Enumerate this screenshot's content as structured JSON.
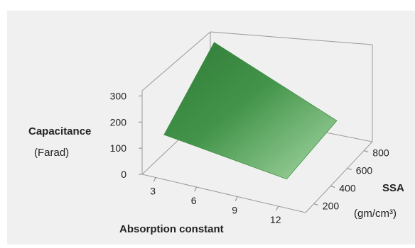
{
  "chart_data": {
    "type": "surface",
    "title": "",
    "xlabel": "Absorption constant",
    "ylabel": "SSA",
    "ylabel_unit": "(gm/cm³)",
    "zlabel": "Capacitance",
    "zlabel_unit": "(Farad)",
    "xticks": [
      "3",
      "6",
      "9",
      "12"
    ],
    "yticks": [
      "200",
      "400",
      "600",
      "800"
    ],
    "zticks": [
      "0",
      "100",
      "200",
      "300"
    ],
    "xlim": [
      2,
      14
    ],
    "ylim": [
      100,
      900
    ],
    "zlim": [
      0,
      320
    ],
    "grid": false,
    "surface_color": "#3f8f45",
    "surface_points": [
      {
        "x": 3,
        "y": 200,
        "z": 130
      },
      {
        "x": 3,
        "y": 800,
        "z": 280
      },
      {
        "x": 12,
        "y": 800,
        "z": 90
      },
      {
        "x": 12,
        "y": 200,
        "z": 70
      }
    ]
  }
}
